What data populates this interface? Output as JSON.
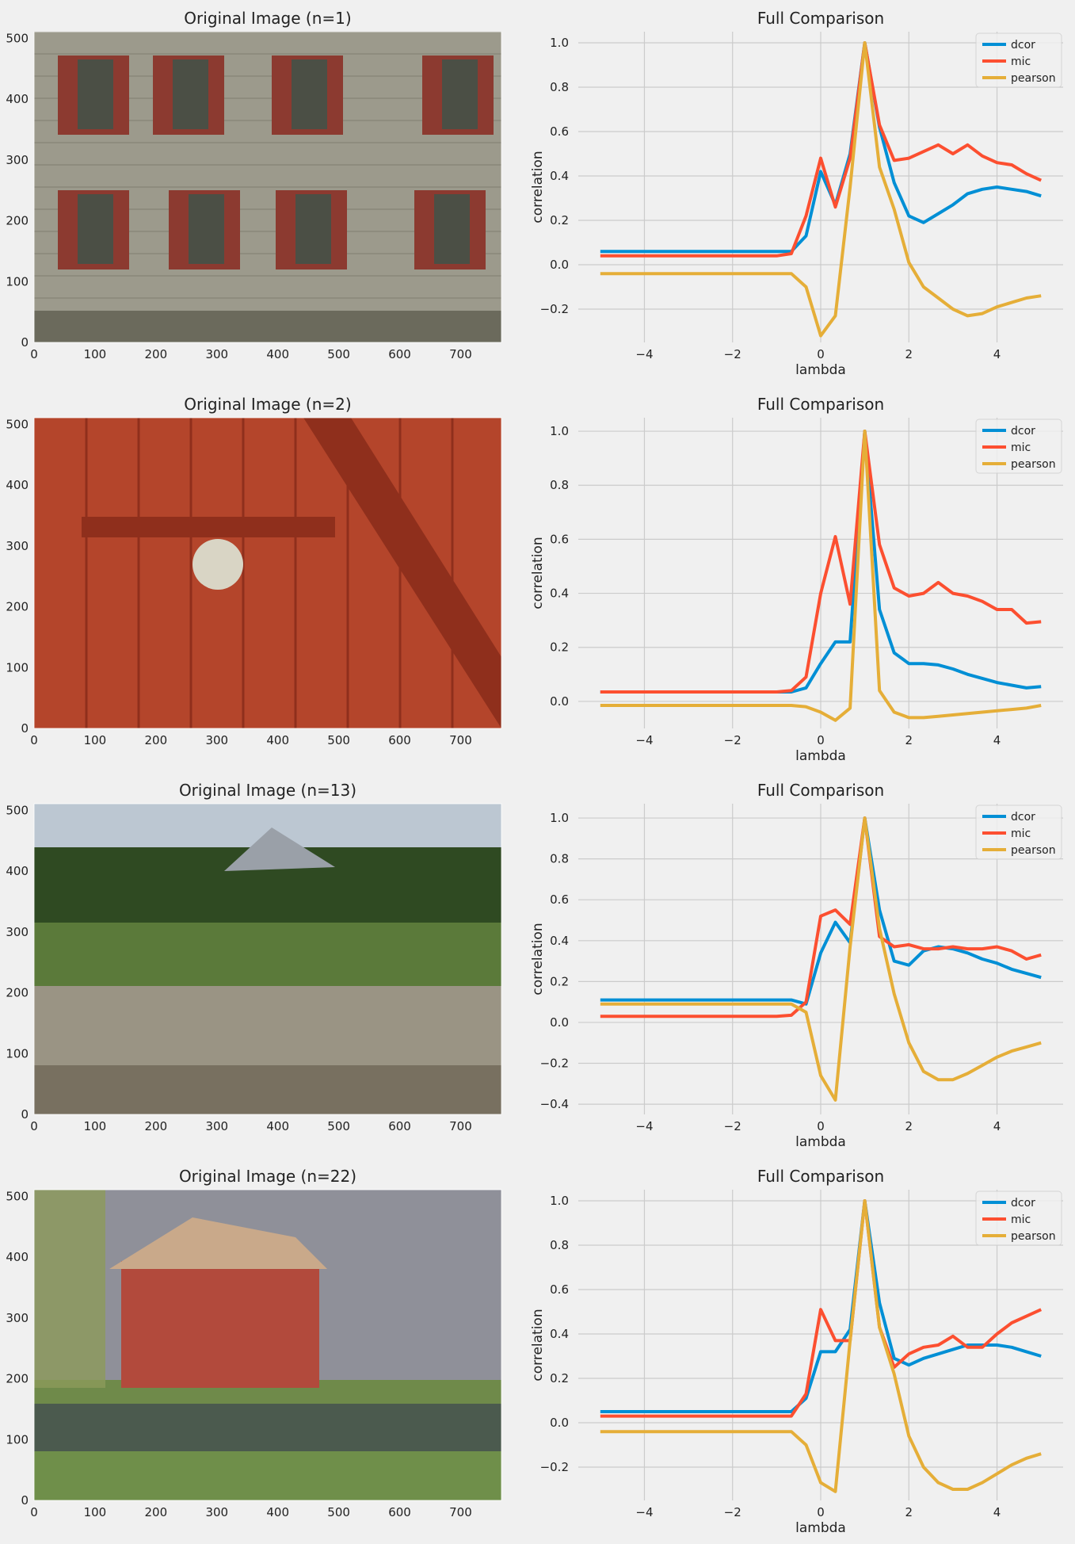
{
  "colors": {
    "background": "#f0f0f0",
    "grid": "#cbcbcb",
    "dcor": "#008fd5",
    "mic": "#fc4f30",
    "pearson": "#e5ae38",
    "photos": [
      {
        "sky": "#8f8b7c",
        "a": "#9c9a8c",
        "b": "#8c3a30",
        "c": "#4b4f45",
        "ground": "#6b6a5c"
      },
      {
        "sky": "#a23b22",
        "a": "#b4452b",
        "b": "#8f2f1c",
        "c": "#d9d5c5",
        "ground": "#9d3a22"
      },
      {
        "sky": "#bcc7d2",
        "a": "#2f4a22",
        "b": "#5b7a3a",
        "c": "#9a9484",
        "ground": "#787060"
      },
      {
        "sky": "#8f9099",
        "a": "#6f8a4a",
        "b": "#b24a3c",
        "c": "#4b5a4e",
        "ground": "#6f8f4a"
      }
    ]
  },
  "image_panels": [
    {
      "title": "Original Image (n=1)",
      "icon": "building-facade-photo"
    },
    {
      "title": "Original Image (n=2)",
      "icon": "red-door-latch-photo"
    },
    {
      "title": "Original Image (n=13)",
      "icon": "mountain-stream-photo"
    },
    {
      "title": "Original Image (n=22)",
      "icon": "red-barn-photo"
    }
  ],
  "image_axes": {
    "xticks": [
      "0",
      "100",
      "200",
      "300",
      "400",
      "500",
      "600",
      "700"
    ],
    "yticks": [
      "0",
      "100",
      "200",
      "300",
      "400",
      "500"
    ],
    "xlim": [
      0,
      767
    ],
    "ylim": [
      511,
      0
    ]
  },
  "chart_data": [
    {
      "type": "line",
      "title": "Full Comparison",
      "xlabel": "lambda",
      "ylabel": "correlation",
      "xlim": [
        -5.5,
        5.5
      ],
      "ylim": [
        -0.35,
        1.05
      ],
      "xticks": [
        -4,
        -2,
        0,
        2,
        4
      ],
      "yticks": [
        -0.2,
        0.0,
        0.2,
        0.4,
        0.6,
        0.8,
        1.0
      ],
      "grid": true,
      "legend": "top-right",
      "x": [
        -5.0,
        -4.667,
        -4.333,
        -4.0,
        -3.667,
        -3.333,
        -3.0,
        -2.667,
        -2.333,
        -2.0,
        -1.667,
        -1.333,
        -1.0,
        -0.667,
        -0.333,
        0.0,
        0.333,
        0.667,
        1.0,
        1.333,
        1.667,
        2.0,
        2.333,
        2.667,
        3.0,
        3.333,
        3.667,
        4.0,
        4.333,
        4.667,
        5.0
      ],
      "series": [
        {
          "name": "dcor",
          "values": [
            0.06,
            0.06,
            0.06,
            0.06,
            0.06,
            0.06,
            0.06,
            0.06,
            0.06,
            0.06,
            0.06,
            0.06,
            0.06,
            0.06,
            0.13,
            0.42,
            0.27,
            0.5,
            1.0,
            0.62,
            0.37,
            0.22,
            0.19,
            0.23,
            0.27,
            0.32,
            0.34,
            0.35,
            0.34,
            0.33,
            0.31
          ]
        },
        {
          "name": "mic",
          "values": [
            0.04,
            0.04,
            0.04,
            0.04,
            0.04,
            0.04,
            0.04,
            0.04,
            0.04,
            0.04,
            0.04,
            0.04,
            0.04,
            0.05,
            0.22,
            0.48,
            0.26,
            0.48,
            1.0,
            0.63,
            0.47,
            0.48,
            0.51,
            0.54,
            0.5,
            0.54,
            0.49,
            0.46,
            0.45,
            0.41,
            0.38
          ]
        },
        {
          "name": "pearson",
          "values": [
            -0.04,
            -0.04,
            -0.04,
            -0.04,
            -0.04,
            -0.04,
            -0.04,
            -0.04,
            -0.04,
            -0.04,
            -0.04,
            -0.04,
            -0.04,
            -0.04,
            -0.1,
            -0.32,
            -0.23,
            0.35,
            1.0,
            0.44,
            0.25,
            0.01,
            -0.1,
            -0.15,
            -0.2,
            -0.23,
            -0.22,
            -0.19,
            -0.17,
            -0.15,
            -0.14
          ]
        }
      ]
    },
    {
      "type": "line",
      "title": "Full Comparison",
      "xlabel": "lambda",
      "ylabel": "correlation",
      "xlim": [
        -5.5,
        5.5
      ],
      "ylim": [
        -0.1,
        1.05
      ],
      "xticks": [
        -4,
        -2,
        0,
        2,
        4
      ],
      "yticks": [
        0.0,
        0.2,
        0.4,
        0.6,
        0.8,
        1.0
      ],
      "grid": true,
      "legend": "top-right",
      "x": [
        -5.0,
        -4.667,
        -4.333,
        -4.0,
        -3.667,
        -3.333,
        -3.0,
        -2.667,
        -2.333,
        -2.0,
        -1.667,
        -1.333,
        -1.0,
        -0.667,
        -0.333,
        0.0,
        0.333,
        0.667,
        1.0,
        1.333,
        1.667,
        2.0,
        2.333,
        2.667,
        3.0,
        3.333,
        3.667,
        4.0,
        4.333,
        4.667,
        5.0
      ],
      "series": [
        {
          "name": "dcor",
          "values": [
            0.035,
            0.035,
            0.035,
            0.035,
            0.035,
            0.035,
            0.035,
            0.035,
            0.035,
            0.035,
            0.035,
            0.035,
            0.035,
            0.035,
            0.05,
            0.14,
            0.22,
            0.22,
            1.0,
            0.34,
            0.18,
            0.14,
            0.14,
            0.135,
            0.12,
            0.1,
            0.085,
            0.07,
            0.06,
            0.05,
            0.055
          ]
        },
        {
          "name": "mic",
          "values": [
            0.035,
            0.035,
            0.035,
            0.035,
            0.035,
            0.035,
            0.035,
            0.035,
            0.035,
            0.035,
            0.035,
            0.035,
            0.035,
            0.04,
            0.09,
            0.4,
            0.61,
            0.36,
            1.0,
            0.58,
            0.42,
            0.39,
            0.4,
            0.44,
            0.4,
            0.39,
            0.37,
            0.34,
            0.34,
            0.29,
            0.295
          ]
        },
        {
          "name": "pearson",
          "values": [
            -0.015,
            -0.015,
            -0.015,
            -0.015,
            -0.015,
            -0.015,
            -0.015,
            -0.015,
            -0.015,
            -0.015,
            -0.015,
            -0.015,
            -0.015,
            -0.015,
            -0.02,
            -0.04,
            -0.07,
            -0.025,
            1.0,
            0.04,
            -0.04,
            -0.06,
            -0.06,
            -0.055,
            -0.05,
            -0.045,
            -0.04,
            -0.035,
            -0.03,
            -0.025,
            -0.015
          ]
        }
      ]
    },
    {
      "type": "line",
      "title": "Full Comparison",
      "xlabel": "lambda",
      "ylabel": "correlation",
      "xlim": [
        -5.5,
        5.5
      ],
      "ylim": [
        -0.45,
        1.07
      ],
      "xticks": [
        -4,
        -2,
        0,
        2,
        4
      ],
      "yticks": [
        -0.4,
        -0.2,
        0.0,
        0.2,
        0.4,
        0.6,
        0.8,
        1.0
      ],
      "grid": true,
      "legend": "top-right",
      "x": [
        -5.0,
        -4.667,
        -4.333,
        -4.0,
        -3.667,
        -3.333,
        -3.0,
        -2.667,
        -2.333,
        -2.0,
        -1.667,
        -1.333,
        -1.0,
        -0.667,
        -0.333,
        0.0,
        0.333,
        0.667,
        1.0,
        1.333,
        1.667,
        2.0,
        2.333,
        2.667,
        3.0,
        3.333,
        3.667,
        4.0,
        4.333,
        4.667,
        5.0
      ],
      "series": [
        {
          "name": "dcor",
          "values": [
            0.11,
            0.11,
            0.11,
            0.11,
            0.11,
            0.11,
            0.11,
            0.11,
            0.11,
            0.11,
            0.11,
            0.11,
            0.11,
            0.11,
            0.09,
            0.34,
            0.49,
            0.39,
            1.0,
            0.55,
            0.3,
            0.28,
            0.35,
            0.37,
            0.36,
            0.34,
            0.31,
            0.29,
            0.26,
            0.24,
            0.22
          ]
        },
        {
          "name": "mic",
          "values": [
            0.03,
            0.03,
            0.03,
            0.03,
            0.03,
            0.03,
            0.03,
            0.03,
            0.03,
            0.03,
            0.03,
            0.03,
            0.03,
            0.035,
            0.1,
            0.52,
            0.55,
            0.48,
            1.0,
            0.42,
            0.37,
            0.38,
            0.36,
            0.36,
            0.37,
            0.36,
            0.36,
            0.37,
            0.35,
            0.31,
            0.33
          ]
        },
        {
          "name": "pearson",
          "values": [
            0.09,
            0.09,
            0.09,
            0.09,
            0.09,
            0.09,
            0.09,
            0.09,
            0.09,
            0.09,
            0.09,
            0.09,
            0.09,
            0.09,
            0.05,
            -0.26,
            -0.38,
            0.37,
            1.0,
            0.46,
            0.14,
            -0.1,
            -0.24,
            -0.28,
            -0.28,
            -0.25,
            -0.21,
            -0.17,
            -0.14,
            -0.12,
            -0.1
          ]
        }
      ]
    },
    {
      "type": "line",
      "title": "Full Comparison",
      "xlabel": "lambda",
      "ylabel": "correlation",
      "xlim": [
        -5.5,
        5.5
      ],
      "ylim": [
        -0.35,
        1.05
      ],
      "xticks": [
        -4,
        -2,
        0,
        2,
        4
      ],
      "yticks": [
        -0.2,
        0.0,
        0.2,
        0.4,
        0.6,
        0.8,
        1.0
      ],
      "grid": true,
      "legend": "top-right",
      "x": [
        -5.0,
        -4.667,
        -4.333,
        -4.0,
        -3.667,
        -3.333,
        -3.0,
        -2.667,
        -2.333,
        -2.0,
        -1.667,
        -1.333,
        -1.0,
        -0.667,
        -0.333,
        0.0,
        0.333,
        0.667,
        1.0,
        1.333,
        1.667,
        2.0,
        2.333,
        2.667,
        3.0,
        3.333,
        3.667,
        4.0,
        4.333,
        4.667,
        5.0
      ],
      "series": [
        {
          "name": "dcor",
          "values": [
            0.05,
            0.05,
            0.05,
            0.05,
            0.05,
            0.05,
            0.05,
            0.05,
            0.05,
            0.05,
            0.05,
            0.05,
            0.05,
            0.05,
            0.11,
            0.32,
            0.32,
            0.42,
            1.0,
            0.54,
            0.29,
            0.26,
            0.29,
            0.31,
            0.33,
            0.35,
            0.35,
            0.35,
            0.34,
            0.32,
            0.3
          ]
        },
        {
          "name": "mic",
          "values": [
            0.03,
            0.03,
            0.03,
            0.03,
            0.03,
            0.03,
            0.03,
            0.03,
            0.03,
            0.03,
            0.03,
            0.03,
            0.03,
            0.03,
            0.13,
            0.51,
            0.37,
            0.37,
            1.0,
            0.43,
            0.25,
            0.31,
            0.34,
            0.35,
            0.39,
            0.34,
            0.34,
            0.4,
            0.45,
            0.48,
            0.51
          ]
        },
        {
          "name": "pearson",
          "values": [
            -0.04,
            -0.04,
            -0.04,
            -0.04,
            -0.04,
            -0.04,
            -0.04,
            -0.04,
            -0.04,
            -0.04,
            -0.04,
            -0.04,
            -0.04,
            -0.04,
            -0.1,
            -0.27,
            -0.31,
            0.37,
            1.0,
            0.43,
            0.22,
            -0.06,
            -0.2,
            -0.27,
            -0.3,
            -0.3,
            -0.27,
            -0.23,
            -0.19,
            -0.16,
            -0.14
          ]
        }
      ]
    }
  ]
}
